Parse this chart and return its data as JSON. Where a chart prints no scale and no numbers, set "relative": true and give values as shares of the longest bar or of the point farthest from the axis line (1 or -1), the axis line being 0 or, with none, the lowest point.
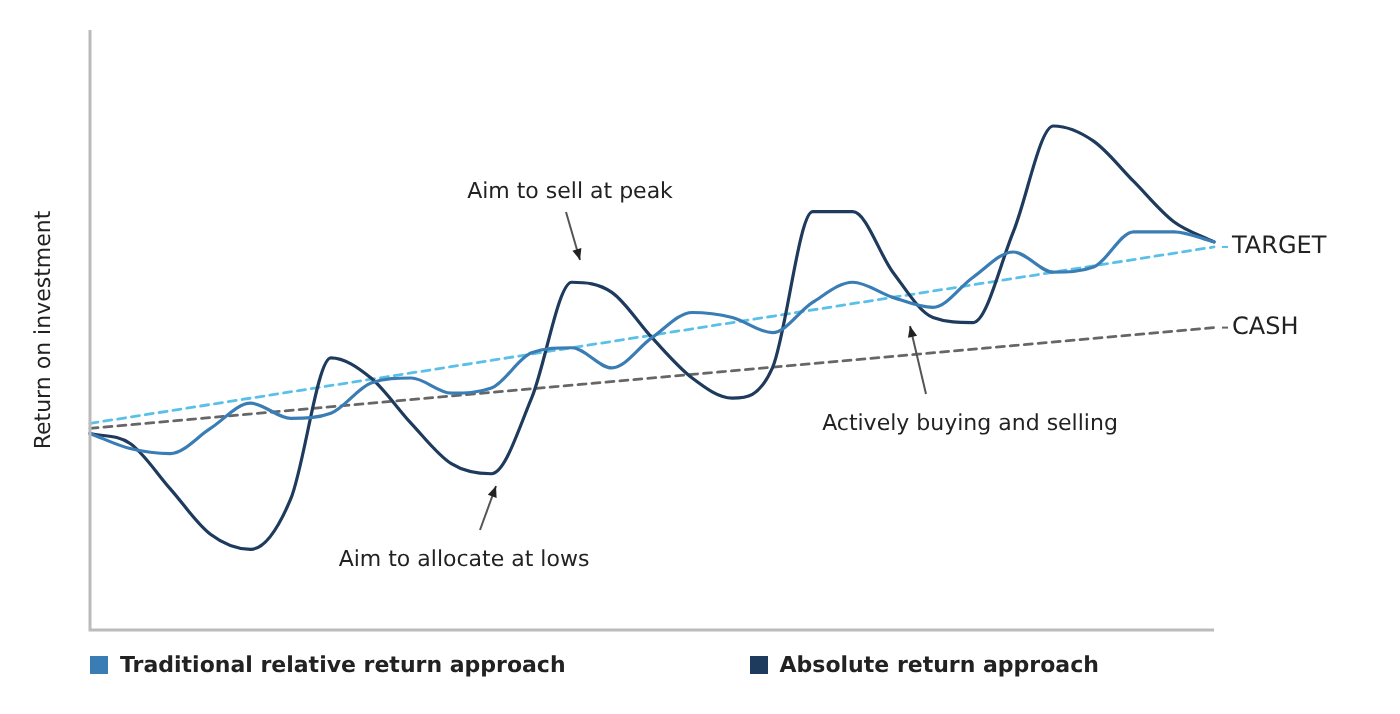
{
  "chart_data": {
    "type": "line",
    "relative": true,
    "ylabel": "Return on investment",
    "legend": "bottom",
    "marker": "none",
    "categories": [
      null,
      null,
      null,
      null,
      null,
      null,
      null,
      null,
      null,
      null,
      null,
      null,
      null,
      null,
      null,
      null,
      null,
      null,
      null,
      null,
      null,
      null,
      null,
      null,
      null,
      null,
      null,
      null,
      null
    ],
    "series": [
      {
        "name": "Traditional relative return approach",
        "color": "#3a7db5",
        "line_style": "solid",
        "values": [
          0.39,
          0.36,
          0.35,
          0.4,
          0.45,
          0.42,
          0.43,
          0.49,
          0.5,
          0.47,
          0.48,
          0.55,
          0.56,
          0.52,
          0.58,
          0.63,
          0.62,
          0.59,
          0.65,
          0.69,
          0.66,
          0.64,
          0.7,
          0.75,
          0.71,
          0.72,
          0.79,
          0.79,
          0.77
        ]
      },
      {
        "name": "Absolute return approach",
        "color": "#1e3a5c",
        "line_style": "solid",
        "values": [
          0.39,
          0.37,
          0.28,
          0.19,
          0.16,
          0.26,
          0.54,
          0.5,
          0.41,
          0.33,
          0.31,
          0.46,
          0.69,
          0.67,
          0.58,
          0.5,
          0.46,
          0.52,
          0.83,
          0.83,
          0.71,
          0.62,
          0.61,
          0.79,
          1.0,
          0.97,
          0.89,
          0.81,
          0.77
        ]
      },
      {
        "name": "TARGET",
        "color": "#5bc0e8",
        "line_style": "dashed",
        "values": [
          0.41,
          null,
          null,
          null,
          null,
          null,
          null,
          null,
          null,
          null,
          null,
          null,
          null,
          null,
          null,
          null,
          null,
          null,
          null,
          null,
          null,
          null,
          null,
          null,
          null,
          null,
          null,
          null,
          0.76
        ]
      },
      {
        "name": "CASH",
        "color": "#666666",
        "line_style": "dashed",
        "values": [
          0.4,
          null,
          null,
          null,
          null,
          null,
          null,
          null,
          null,
          null,
          null,
          null,
          null,
          null,
          null,
          null,
          null,
          null,
          null,
          null,
          null,
          null,
          null,
          null,
          null,
          null,
          null,
          null,
          0.6
        ]
      }
    ],
    "annotations": [
      "Aim to sell at peak",
      "Aim to allocate at lows",
      "Actively buying and selling"
    ]
  }
}
